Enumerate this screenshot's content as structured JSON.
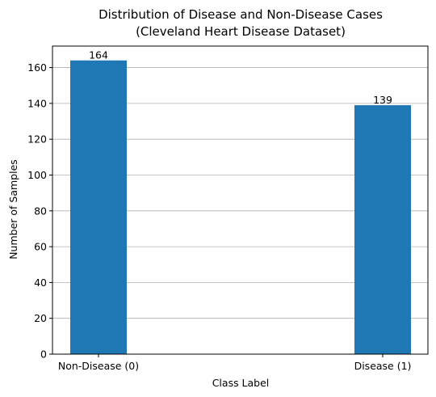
{
  "chart_data": {
    "type": "bar",
    "title": "Distribution of Disease and Non-Disease Cases\n(Cleveland Heart Disease Dataset)",
    "title_lines": [
      "Distribution of Disease and Non-Disease Cases",
      "(Cleveland Heart Disease Dataset)"
    ],
    "xlabel": "Class Label",
    "ylabel": "Number of Samples",
    "categories": [
      "Non-Disease (0)",
      "Disease (1)"
    ],
    "values": [
      164,
      139
    ],
    "data_labels": [
      "164",
      "139"
    ],
    "ylim": [
      0,
      172
    ],
    "yticks": [
      0,
      20,
      40,
      60,
      80,
      100,
      120,
      140,
      160
    ],
    "grid": "y",
    "bar_color": "#1f77b4"
  }
}
